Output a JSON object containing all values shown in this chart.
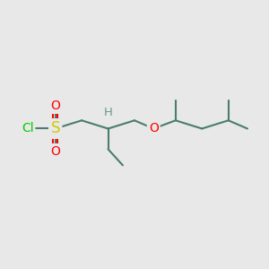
{
  "background_color": "#e8e8e8",
  "bond_color": "#4a7c6f",
  "S_color": "#cccc00",
  "O_color": "#ff0000",
  "Cl_color": "#00cc00",
  "H_color": "#6a9a8f",
  "bond_width": 1.5,
  "figsize": [
    3.0,
    3.0
  ],
  "dpi": 100,
  "xlim": [
    -0.5,
    8.5
  ],
  "ylim": [
    -1.2,
    1.8
  ]
}
